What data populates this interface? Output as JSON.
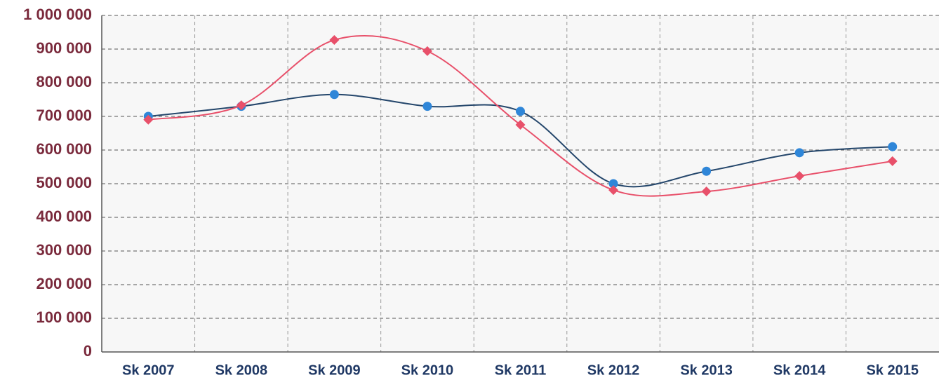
{
  "chart_data": {
    "type": "line",
    "categories": [
      "Sk 2007",
      "Sk 2008",
      "Sk 2009",
      "Sk 2010",
      "Sk 2011",
      "Sk 2012",
      "Sk 2013",
      "Sk 2014",
      "Sk 2015"
    ],
    "series": [
      {
        "color": "#24466b",
        "marker_color": "#2f86d8",
        "marker": "circle",
        "values": [
          700000,
          730000,
          765000,
          730000,
          715000,
          500000,
          537000,
          592000,
          610000
        ]
      },
      {
        "color": "#e8506a",
        "marker_color": "#e8506a",
        "marker": "diamond",
        "values": [
          690000,
          733000,
          927000,
          894000,
          675000,
          481000,
          477000,
          523000,
          567000
        ]
      }
    ],
    "ylim": [
      0,
      1000000
    ],
    "yticks": [
      0,
      {
        "value": 100000,
        "label": "100 000"
      },
      {
        "value": 200000,
        "label": "200 000"
      },
      {
        "value": 300000,
        "label": "300 000"
      },
      {
        "value": 400000,
        "label": "400 000"
      },
      {
        "value": 500000,
        "label": "500 000"
      },
      {
        "value": 600000,
        "label": "600 000"
      },
      {
        "value": 700000,
        "label": "700 000"
      },
      {
        "value": 800000,
        "label": "800 000"
      },
      {
        "value": 900000,
        "label": "900 000"
      },
      {
        "value": 1000000,
        "label": "1 000 000"
      }
    ],
    "grid": true,
    "smooth": true
  }
}
